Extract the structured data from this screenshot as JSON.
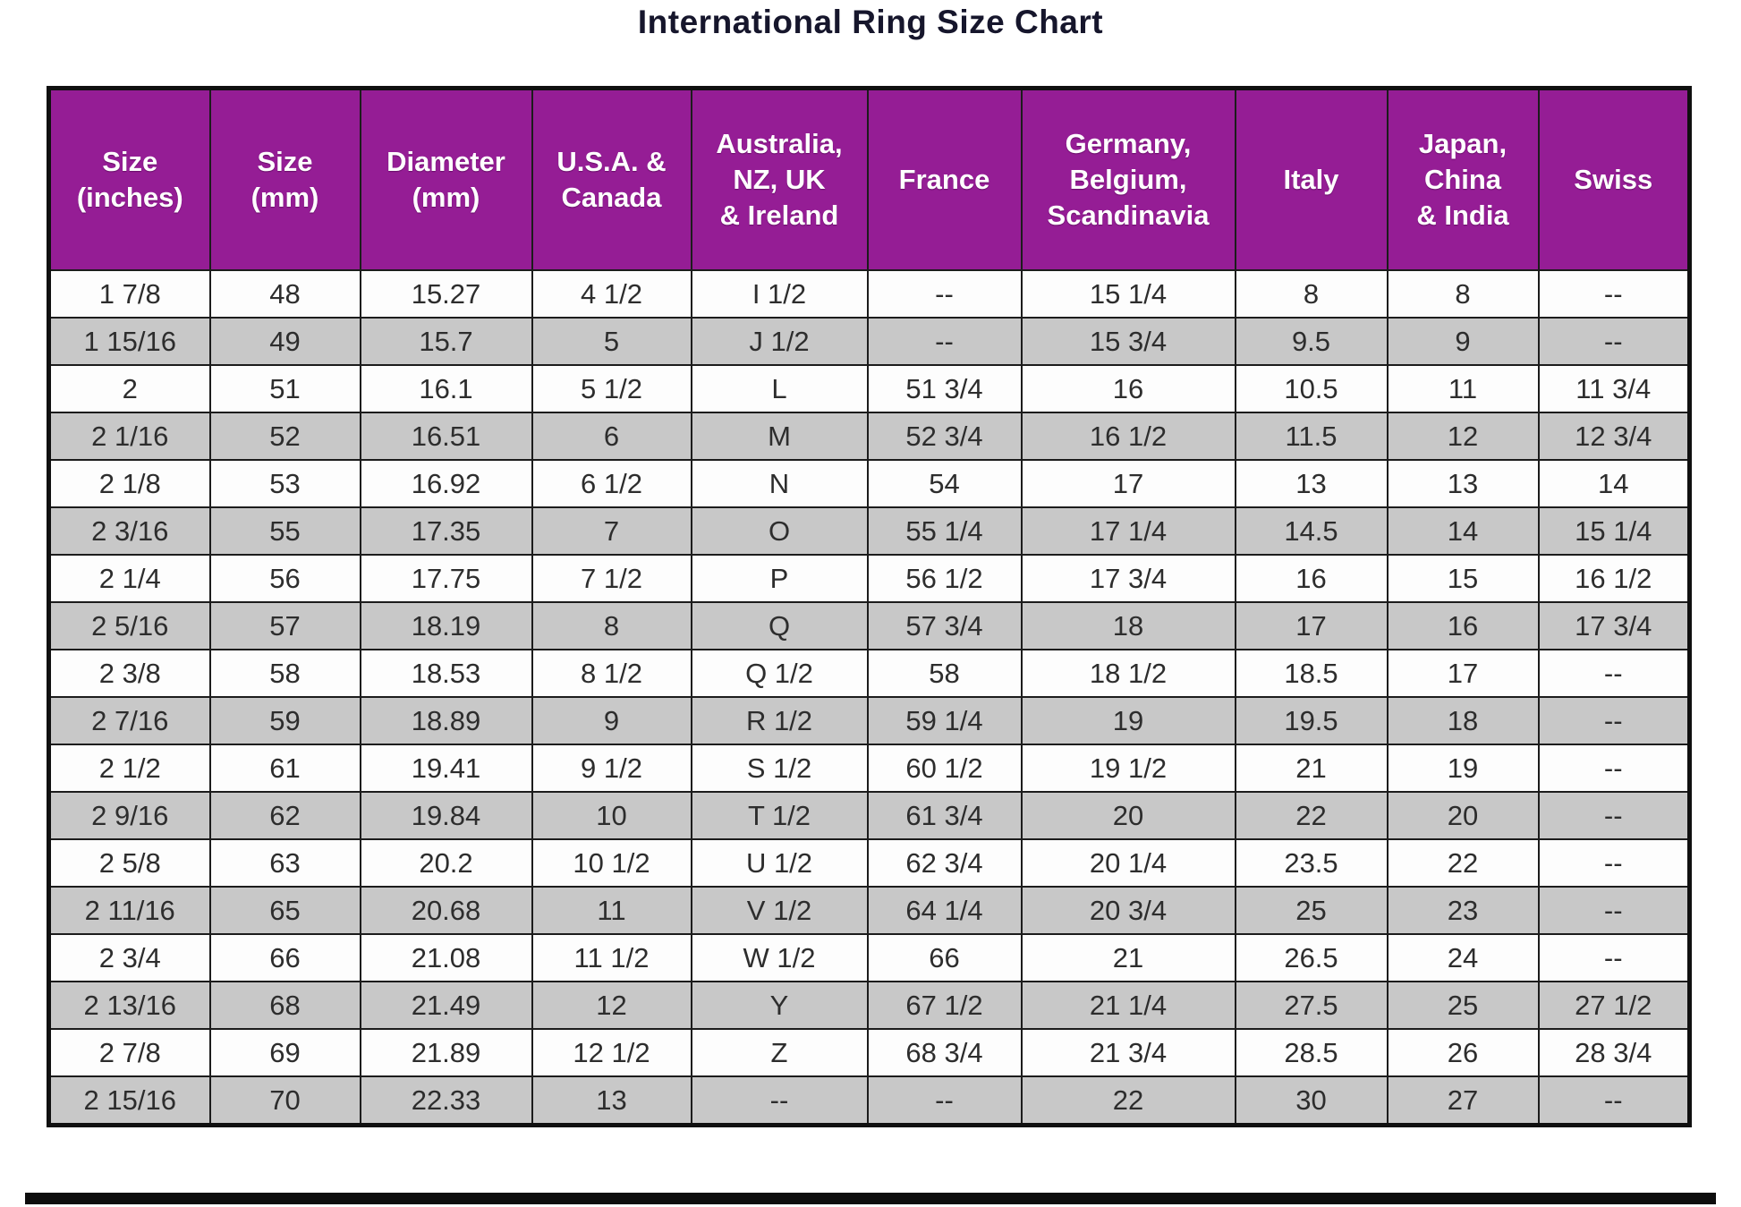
{
  "page": {
    "title": "International Ring Size Chart"
  },
  "colors": {
    "header_bg": "#951d95",
    "header_text": "#ffffff",
    "row_bg": "#fdfdfd",
    "row_alt_bg": "#c8c8c8",
    "grid_border": "#1c1c1c",
    "title_text": "#16162c",
    "bottom_bar": "#0d0d0d"
  },
  "chart_data": {
    "type": "table",
    "title": "International Ring Size Chart",
    "columns": [
      "Size\n(inches)",
      "Size\n(mm)",
      "Diameter\n(mm)",
      "U.S.A. &\nCanada",
      "Australia,\nNZ, UK\n& Ireland",
      "France",
      "Germany,\nBelgium,\nScandinavia",
      "Italy",
      "Japan,\nChina\n& India",
      "Swiss"
    ],
    "rows": [
      [
        "1 7/8",
        "48",
        "15.27",
        "4 1/2",
        "I 1/2",
        "--",
        "15 1/4",
        "8",
        "8",
        "--"
      ],
      [
        "1 15/16",
        "49",
        "15.7",
        "5",
        "J 1/2",
        "--",
        "15 3/4",
        "9.5",
        "9",
        "--"
      ],
      [
        "2",
        "51",
        "16.1",
        "5 1/2",
        "L",
        "51 3/4",
        "16",
        "10.5",
        "11",
        "11 3/4"
      ],
      [
        "2 1/16",
        "52",
        "16.51",
        "6",
        "M",
        "52 3/4",
        "16 1/2",
        "11.5",
        "12",
        "12 3/4"
      ],
      [
        "2 1/8",
        "53",
        "16.92",
        "6 1/2",
        "N",
        "54",
        "17",
        "13",
        "13",
        "14"
      ],
      [
        "2 3/16",
        "55",
        "17.35",
        "7",
        "O",
        "55 1/4",
        "17 1/4",
        "14.5",
        "14",
        "15 1/4"
      ],
      [
        "2 1/4",
        "56",
        "17.75",
        "7 1/2",
        "P",
        "56 1/2",
        "17 3/4",
        "16",
        "15",
        "16 1/2"
      ],
      [
        "2 5/16",
        "57",
        "18.19",
        "8",
        "Q",
        "57 3/4",
        "18",
        "17",
        "16",
        "17 3/4"
      ],
      [
        "2 3/8",
        "58",
        "18.53",
        "8 1/2",
        "Q 1/2",
        "58",
        "18 1/2",
        "18.5",
        "17",
        "--"
      ],
      [
        "2 7/16",
        "59",
        "18.89",
        "9",
        "R 1/2",
        "59 1/4",
        "19",
        "19.5",
        "18",
        "--"
      ],
      [
        "2 1/2",
        "61",
        "19.41",
        "9 1/2",
        "S 1/2",
        "60 1/2",
        "19 1/2",
        "21",
        "19",
        "--"
      ],
      [
        "2 9/16",
        "62",
        "19.84",
        "10",
        "T 1/2",
        "61 3/4",
        "20",
        "22",
        "20",
        "--"
      ],
      [
        "2 5/8",
        "63",
        "20.2",
        "10 1/2",
        "U 1/2",
        "62 3/4",
        "20 1/4",
        "23.5",
        "22",
        "--"
      ],
      [
        "2 11/16",
        "65",
        "20.68",
        "11",
        "V 1/2",
        "64 1/4",
        "20 3/4",
        "25",
        "23",
        "--"
      ],
      [
        "2 3/4",
        "66",
        "21.08",
        "11 1/2",
        "W 1/2",
        "66",
        "21",
        "26.5",
        "24",
        "--"
      ],
      [
        "2 13/16",
        "68",
        "21.49",
        "12",
        "Y",
        "67 1/2",
        "21 1/4",
        "27.5",
        "25",
        "27 1/2"
      ],
      [
        "2 7/8",
        "69",
        "21.89",
        "12 1/2",
        "Z",
        "68 3/4",
        "21 3/4",
        "28.5",
        "26",
        "28 3/4"
      ],
      [
        "2 15/16",
        "70",
        "22.33",
        "13",
        "--",
        "--",
        "22",
        "30",
        "27",
        "--"
      ]
    ]
  }
}
